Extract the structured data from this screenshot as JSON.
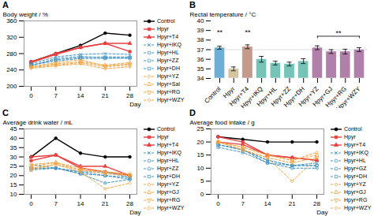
{
  "chart_data": [
    {
      "type": "line",
      "title": "A",
      "xlabel": "Day",
      "ylabel": "Body weight / %",
      "x": [
        0,
        7,
        14,
        21,
        28
      ],
      "xlim": [
        -2,
        30
      ],
      "xticks": [
        0,
        7,
        14,
        21,
        28
      ],
      "ylim": [
        200,
        360
      ],
      "yticks": [
        200,
        240,
        280,
        320,
        360
      ],
      "legend": "right",
      "series": [
        {
          "name": "Control",
          "color": "#000000",
          "line_style": "solid",
          "marker": "circle",
          "values": [
            260,
            280,
            300,
            330,
            325
          ]
        },
        {
          "name": "Hpyr",
          "color": "#e84040",
          "line_style": "solid",
          "marker": "square",
          "values": [
            260,
            280,
            295,
            305,
            285
          ]
        },
        {
          "name": "Hpyr+T4",
          "color": "#e84040",
          "line_style": "solid",
          "marker": "triangle_up",
          "values": [
            258,
            278,
            295,
            305,
            305
          ]
        },
        {
          "name": "Hpyr+IKQ",
          "color": "#4393c3",
          "line_style": "dashed",
          "marker": "x",
          "values": [
            255,
            272,
            278,
            280,
            278
          ]
        },
        {
          "name": "Hpyr+HL",
          "color": "#4393c3",
          "line_style": "dashed",
          "marker": "circle",
          "values": [
            250,
            268,
            273,
            270,
            268
          ]
        },
        {
          "name": "Hpyr+ZZ",
          "color": "#4393c3",
          "line_style": "dashed",
          "marker": "pentagon",
          "values": [
            252,
            265,
            270,
            272,
            272
          ]
        },
        {
          "name": "Hpyr+DH",
          "color": "#4393c3",
          "line_style": "dashed",
          "marker": "square",
          "values": [
            252,
            262,
            268,
            268,
            270
          ]
        },
        {
          "name": "Hpyr+YZ",
          "color": "#f4a443",
          "line_style": "dashed",
          "marker": "diamond",
          "values": [
            248,
            258,
            265,
            250,
            255
          ]
        },
        {
          "name": "Hpyr+Sal",
          "color": "#f4a443",
          "line_style": "dashed",
          "marker": "triangle_up",
          "values": [
            248,
            255,
            260,
            252,
            258
          ]
        },
        {
          "name": "Hpyr+RG",
          "color": "#f4a443",
          "line_style": "dashed",
          "marker": "triangle_down",
          "values": [
            246,
            252,
            258,
            248,
            252
          ]
        },
        {
          "name": "Hpyr+WZY",
          "color": "#f4a443",
          "line_style": "dashed",
          "marker": "diamond",
          "values": [
            244,
            250,
            255,
            243,
            248
          ]
        }
      ]
    },
    {
      "type": "bar",
      "title": "B",
      "ylabel": "Rectal temperature / °C",
      "categories": [
        "Control",
        "Hpyr",
        "Hpyr+T4",
        "Hpyr+IKQ",
        "Hpyr+HL",
        "Hpyr+ZZ",
        "Hpyr+DH",
        "Hpyr+YZ",
        "Hpyr+GJ",
        "Hpyr+RG",
        "Hpyr+WZY"
      ],
      "values": [
        37.2,
        35.0,
        37.3,
        36.0,
        35.6,
        35.5,
        35.8,
        37.2,
        36.8,
        36.8,
        37.0
      ],
      "errors": [
        0.15,
        0.2,
        0.2,
        0.3,
        0.2,
        0.2,
        0.25,
        0.2,
        0.2,
        0.25,
        0.2
      ],
      "colors": [
        "#6baed6",
        "#d4c5a0",
        "#c49a8c",
        "#76c4b8",
        "#76c4b8",
        "#76c4b8",
        "#76c4b8",
        "#b07faa",
        "#b07faa",
        "#b07faa",
        "#b07faa"
      ],
      "ylim": [
        34,
        40
      ],
      "yticks": [
        34,
        35,
        36,
        37,
        38,
        39,
        40
      ],
      "annotations": [
        {
          "text": "**",
          "x": "Control",
          "y": 38.6
        },
        {
          "text": "**",
          "x": "Hpyr+T4",
          "y": 38.6
        },
        {
          "text": "**",
          "x": [
            "Hpyr+YZ",
            "Hpyr+WZY"
          ],
          "y": 38.4
        }
      ],
      "reference_lines": [
        {
          "y": 37.0,
          "color": "lightgray"
        }
      ]
    },
    {
      "type": "line",
      "title": "C",
      "xlabel": "Day",
      "ylabel": "Average drink water / mL",
      "x": [
        0,
        7,
        14,
        21,
        28
      ],
      "xlim": [
        -2,
        30
      ],
      "xticks": [
        0,
        7,
        14,
        21,
        28
      ],
      "ylim": [
        10,
        45
      ],
      "yticks": [
        10,
        15,
        20,
        25,
        30,
        35,
        40,
        45
      ],
      "legend": "right",
      "series": [
        {
          "name": "Control",
          "color": "#000000",
          "line_style": "solid",
          "marker": "circle",
          "values": [
            30,
            40,
            32,
            30,
            30
          ]
        },
        {
          "name": "Hpyr",
          "color": "#e84040",
          "line_style": "solid",
          "marker": "square",
          "values": [
            28,
            31,
            24,
            22,
            20
          ]
        },
        {
          "name": "Hpyr+T4",
          "color": "#e84040",
          "line_style": "solid",
          "marker": "triangle_up",
          "values": [
            30,
            31,
            25,
            25,
            20
          ]
        },
        {
          "name": "Hpyr+IKQ",
          "color": "#4393c3",
          "line_style": "dashed",
          "marker": "x",
          "values": [
            26,
            24,
            22,
            22,
            19
          ]
        },
        {
          "name": "Hpyr+HL",
          "color": "#4393c3",
          "line_style": "dashed",
          "marker": "circle",
          "values": [
            24,
            24,
            21,
            16,
            18
          ]
        },
        {
          "name": "Hpyr+ZZ",
          "color": "#4393c3",
          "line_style": "dashed",
          "marker": "pentagon",
          "values": [
            24,
            24,
            22,
            20,
            19
          ]
        },
        {
          "name": "Hpyr+DH",
          "color": "#4393c3",
          "line_style": "dashed",
          "marker": "square",
          "values": [
            23,
            24,
            21,
            20,
            18
          ]
        },
        {
          "name": "Hpyr+YZ",
          "color": "#f4a443",
          "line_style": "dashed",
          "marker": "diamond",
          "values": [
            26,
            27,
            23,
            22,
            21
          ]
        },
        {
          "name": "Hpyr+GJ",
          "color": "#f4a443",
          "line_style": "dashed",
          "marker": "triangle_up",
          "values": [
            25,
            27,
            24,
            22,
            20
          ]
        },
        {
          "name": "Hpyr+RG",
          "color": "#f4a443",
          "line_style": "dashed",
          "marker": "triangle_down",
          "values": [
            24,
            26,
            23,
            21,
            20
          ]
        },
        {
          "name": "Hpyr+WZY",
          "color": "#f4a443",
          "line_style": "dashed",
          "marker": "diamond",
          "values": [
            23,
            26,
            22,
            13,
            16
          ]
        }
      ]
    },
    {
      "type": "line",
      "title": "D",
      "xlabel": "Day",
      "ylabel": "Average food intake / g",
      "x": [
        0,
        7,
        14,
        21,
        28
      ],
      "xlim": [
        -2,
        30
      ],
      "xticks": [
        0,
        7,
        14,
        21,
        28
      ],
      "ylim": [
        0,
        25
      ],
      "yticks": [
        0,
        5,
        10,
        15,
        20,
        25
      ],
      "legend": "right",
      "series": [
        {
          "name": "Control",
          "color": "#000000",
          "line_style": "solid",
          "marker": "circle",
          "values": [
            22,
            21,
            20,
            20,
            20
          ]
        },
        {
          "name": "Hpyr",
          "color": "#e84040",
          "line_style": "solid",
          "marker": "square",
          "values": [
            22,
            20,
            15,
            14,
            13
          ]
        },
        {
          "name": "Hpyr+T4",
          "color": "#e84040",
          "line_style": "solid",
          "marker": "triangle_up",
          "values": [
            20,
            19,
            15,
            14,
            13
          ]
        },
        {
          "name": "Hpyr+IKQ",
          "color": "#4393c3",
          "line_style": "dashed",
          "marker": "x",
          "values": [
            19,
            17,
            13,
            11,
            12
          ]
        },
        {
          "name": "Hpyr+HL",
          "color": "#4393c3",
          "line_style": "dashed",
          "marker": "circle",
          "values": [
            19,
            17,
            12,
            10,
            10
          ]
        },
        {
          "name": "Hpyr+GZ",
          "color": "#4393c3",
          "line_style": "dashed",
          "marker": "pentagon",
          "values": [
            19,
            17,
            13,
            11,
            11
          ]
        },
        {
          "name": "Hpyr+DH",
          "color": "#4393c3",
          "line_style": "dashed",
          "marker": "square",
          "values": [
            18,
            16,
            12,
            11,
            11
          ]
        },
        {
          "name": "Hpyr+YZ",
          "color": "#f4a443",
          "line_style": "dashed",
          "marker": "diamond",
          "values": [
            20,
            18,
            15,
            13,
            16
          ]
        },
        {
          "name": "Hpyr+GJ",
          "color": "#f4a443",
          "line_style": "dashed",
          "marker": "triangle_up",
          "values": [
            20,
            18,
            15,
            13,
            15
          ]
        },
        {
          "name": "Hpyr+RG",
          "color": "#f4a443",
          "line_style": "dashed",
          "marker": "triangle_down",
          "values": [
            20,
            17,
            14,
            12,
            14
          ]
        },
        {
          "name": "Hpyr+WZY",
          "color": "#f4a443",
          "line_style": "dashed",
          "marker": "diamond",
          "values": [
            20,
            17,
            14,
            5,
            14
          ]
        }
      ]
    }
  ]
}
